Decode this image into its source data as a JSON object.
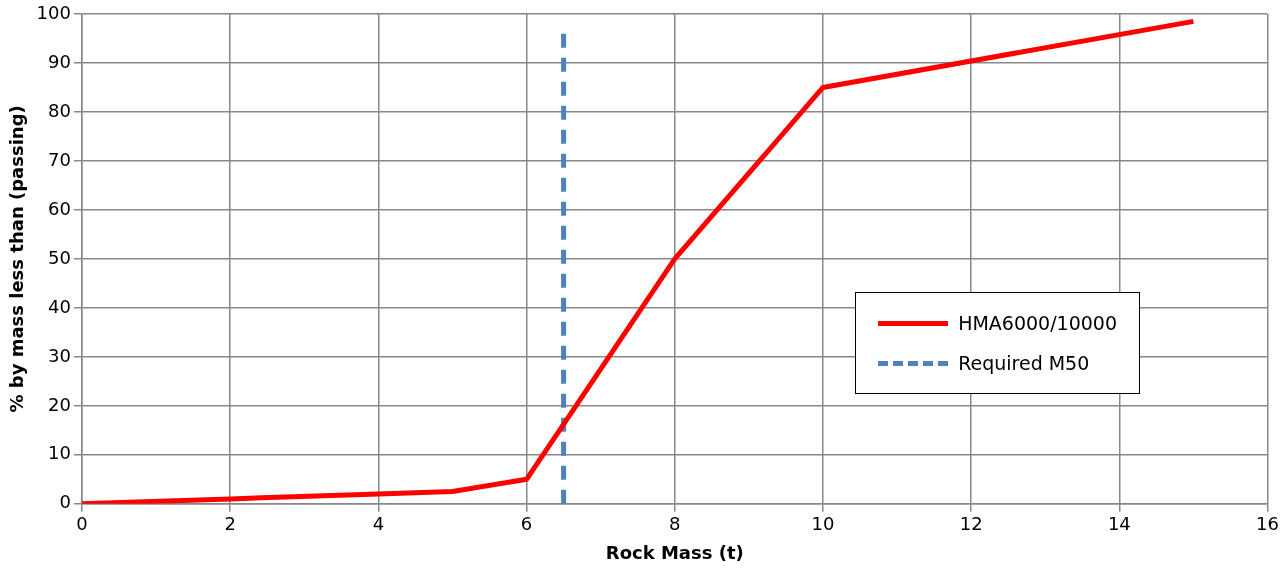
{
  "chart_data": {
    "type": "line",
    "xlabel": "Rock Mass (t)",
    "ylabel": "% by mass less than (passing)",
    "xlim": [
      0,
      16
    ],
    "xticks": [
      0,
      2,
      4,
      6,
      8,
      10,
      12,
      14,
      16
    ],
    "ylim": [
      0,
      100
    ],
    "yticks": [
      0,
      10,
      20,
      30,
      40,
      50,
      60,
      70,
      80,
      90,
      100
    ],
    "grid": true,
    "legend": "right",
    "marker": "none",
    "series": [
      {
        "name": "HMA6000/10000",
        "color": "#ff0000",
        "x": [
          0,
          2,
          4,
          5,
          6,
          8,
          10,
          15
        ],
        "values": [
          0,
          1,
          2,
          2.5,
          5,
          50,
          85,
          98.5
        ],
        "line_style": "solid"
      },
      {
        "name": "Required M50",
        "color": "#4f81bd",
        "x": [
          6.5,
          6.5
        ],
        "values": [
          0,
          96
        ],
        "line_style": "dashed"
      }
    ]
  }
}
